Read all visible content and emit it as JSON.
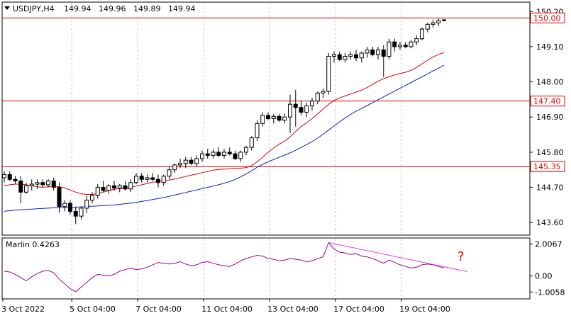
{
  "header": {
    "symbol": "USDJPY,H4",
    "open": "149.94",
    "high": "149.96",
    "low": "149.89",
    "close": "149.94"
  },
  "price_axis": {
    "labels": [
      "150.20",
      "149.10",
      "148.00",
      "146.90",
      "145.80",
      "144.70",
      "143.60"
    ]
  },
  "levels": [
    {
      "value": "150.00",
      "price": 150.0
    },
    {
      "value": "147.40",
      "price": 147.4
    },
    {
      "value": "145.35",
      "price": 145.35
    }
  ],
  "indicator": {
    "name": "Marlin 0.4263",
    "axis_labels": [
      "2.0067",
      "0.00",
      "-1.0058"
    ],
    "annotation": "?"
  },
  "time_axis": {
    "labels": [
      "3 Oct 2022",
      "5 Oct 04:00",
      "7 Oct 04:00",
      "11 Oct 04:00",
      "13 Oct 04:00",
      "17 Oct 04:00",
      "19 Oct 04:00"
    ]
  },
  "colors": {
    "level_line": "#e00000",
    "ma_fast": "#dd0000",
    "ma_slow": "#0022cc",
    "oscillator": "#990099",
    "divergence_line": "#ee33ee"
  },
  "chart_data": {
    "type": "candlestick",
    "ylim": [
      143.25,
      150.45
    ],
    "candles": [
      [
        145.0,
        145.2,
        144.85,
        145.1
      ],
      [
        145.1,
        145.2,
        144.9,
        144.95
      ],
      [
        144.95,
        145.05,
        144.8,
        144.9
      ],
      [
        144.9,
        145.05,
        144.2,
        144.55
      ],
      [
        144.55,
        144.85,
        144.5,
        144.75
      ],
      [
        144.75,
        144.95,
        144.6,
        144.8
      ],
      [
        144.8,
        144.95,
        144.65,
        144.85
      ],
      [
        144.85,
        144.95,
        144.7,
        144.78
      ],
      [
        144.78,
        144.95,
        144.7,
        144.9
      ],
      [
        144.9,
        145.0,
        144.6,
        144.7
      ],
      [
        144.7,
        144.85,
        143.9,
        144.1
      ],
      [
        144.1,
        144.3,
        143.95,
        144.2
      ],
      [
        144.2,
        144.3,
        143.85,
        143.95
      ],
      [
        143.95,
        144.1,
        143.55,
        143.8
      ],
      [
        143.8,
        144.1,
        143.7,
        144.05
      ],
      [
        144.05,
        144.45,
        143.9,
        144.3
      ],
      [
        144.3,
        144.55,
        144.2,
        144.45
      ],
      [
        144.45,
        144.8,
        144.35,
        144.7
      ],
      [
        144.7,
        144.9,
        144.55,
        144.6
      ],
      [
        144.6,
        144.8,
        144.5,
        144.75
      ],
      [
        144.75,
        144.9,
        144.6,
        144.68
      ],
      [
        144.68,
        144.8,
        144.55,
        144.75
      ],
      [
        144.75,
        144.9,
        144.6,
        144.65
      ],
      [
        144.65,
        144.95,
        144.55,
        144.85
      ],
      [
        144.85,
        145.15,
        144.8,
        145.05
      ],
      [
        145.05,
        145.15,
        144.85,
        144.95
      ],
      [
        144.95,
        145.1,
        144.85,
        145.0
      ],
      [
        145.0,
        145.15,
        144.9,
        144.95
      ],
      [
        144.95,
        145.1,
        144.7,
        144.85
      ],
      [
        144.85,
        145.1,
        144.75,
        145.05
      ],
      [
        145.05,
        145.35,
        144.95,
        145.25
      ],
      [
        145.25,
        145.45,
        145.15,
        145.4
      ],
      [
        145.4,
        145.6,
        145.3,
        145.45
      ],
      [
        145.45,
        145.65,
        145.3,
        145.55
      ],
      [
        145.55,
        145.65,
        145.4,
        145.45
      ],
      [
        145.45,
        145.7,
        145.35,
        145.6
      ],
      [
        145.6,
        145.85,
        145.5,
        145.75
      ],
      [
        145.75,
        145.9,
        145.6,
        145.7
      ],
      [
        145.7,
        145.9,
        145.6,
        145.8
      ],
      [
        145.8,
        145.95,
        145.65,
        145.7
      ],
      [
        145.7,
        145.9,
        145.6,
        145.8
      ],
      [
        145.8,
        145.95,
        145.7,
        145.75
      ],
      [
        145.75,
        145.85,
        145.55,
        145.6
      ],
      [
        145.6,
        145.85,
        145.5,
        145.8
      ],
      [
        145.8,
        146.0,
        145.7,
        145.95
      ],
      [
        145.95,
        146.3,
        145.85,
        146.25
      ],
      [
        146.25,
        146.8,
        146.15,
        146.7
      ],
      [
        146.7,
        147.05,
        146.6,
        146.95
      ],
      [
        146.95,
        147.05,
        146.8,
        146.85
      ],
      [
        146.85,
        147.0,
        146.7,
        146.92
      ],
      [
        146.92,
        147.0,
        146.75,
        146.8
      ],
      [
        146.8,
        147.0,
        146.7,
        146.9
      ],
      [
        146.9,
        147.6,
        146.4,
        147.3
      ],
      [
        147.3,
        147.75,
        146.6,
        147.2
      ],
      [
        147.2,
        147.4,
        146.95,
        147.05
      ],
      [
        147.05,
        147.35,
        146.9,
        147.25
      ],
      [
        147.25,
        147.5,
        147.1,
        147.4
      ],
      [
        147.4,
        147.7,
        147.3,
        147.65
      ],
      [
        147.65,
        147.8,
        147.5,
        147.7
      ],
      [
        147.7,
        148.9,
        147.6,
        148.8
      ],
      [
        148.8,
        148.95,
        148.6,
        148.85
      ],
      [
        148.85,
        148.95,
        148.65,
        148.7
      ],
      [
        148.7,
        148.9,
        148.6,
        148.8
      ],
      [
        148.8,
        148.95,
        148.7,
        148.85
      ],
      [
        148.85,
        149.0,
        148.65,
        148.75
      ],
      [
        148.75,
        148.95,
        148.6,
        148.9
      ],
      [
        148.9,
        149.1,
        148.75,
        149.0
      ],
      [
        149.0,
        149.1,
        148.8,
        148.85
      ],
      [
        148.85,
        149.1,
        148.7,
        149.0
      ],
      [
        149.0,
        149.15,
        148.15,
        148.8
      ],
      [
        148.8,
        149.35,
        148.7,
        149.25
      ],
      [
        149.25,
        149.35,
        148.95,
        149.1
      ],
      [
        149.1,
        149.25,
        149.0,
        149.15
      ],
      [
        149.15,
        149.25,
        149.05,
        149.1
      ],
      [
        149.1,
        149.3,
        149.05,
        149.25
      ],
      [
        149.25,
        149.45,
        149.15,
        149.35
      ],
      [
        149.35,
        149.7,
        149.3,
        149.65
      ],
      [
        149.65,
        149.85,
        149.55,
        149.8
      ],
      [
        149.8,
        149.95,
        149.7,
        149.85
      ],
      [
        149.85,
        149.98,
        149.75,
        149.92
      ],
      [
        149.92,
        149.96,
        149.89,
        149.94
      ]
    ],
    "ma_fast": [
      144.75,
      144.78,
      144.8,
      144.8,
      144.78,
      144.75,
      144.72,
      144.7,
      144.72,
      144.74,
      144.72,
      144.68,
      144.62,
      144.55,
      144.5,
      144.48,
      144.48,
      144.5,
      144.55,
      144.6,
      144.64,
      144.66,
      144.68,
      144.7,
      144.74,
      144.78,
      144.82,
      144.86,
      144.88,
      144.9,
      144.93,
      144.96,
      145.0,
      145.04,
      145.08,
      145.12,
      145.16,
      145.2,
      145.24,
      145.26,
      145.27,
      145.28,
      145.29,
      145.3,
      145.32,
      145.38,
      145.5,
      145.65,
      145.8,
      145.93,
      146.05,
      146.15,
      146.28,
      146.45,
      146.6,
      146.72,
      146.85,
      147.0,
      147.15,
      147.3,
      147.42,
      147.5,
      147.56,
      147.62,
      147.68,
      147.74,
      147.82,
      147.92,
      148.02,
      148.1,
      148.16,
      148.22,
      148.26,
      148.3,
      148.36,
      148.45,
      148.56,
      148.68,
      148.78,
      148.86,
      148.92
    ],
    "ma_slow": [
      143.95,
      143.97,
      143.99,
      144.0,
      144.01,
      144.02,
      144.03,
      144.04,
      144.05,
      144.06,
      144.06,
      144.06,
      144.07,
      144.08,
      144.09,
      144.1,
      144.11,
      144.12,
      144.13,
      144.14,
      144.15,
      144.17,
      144.19,
      144.21,
      144.23,
      144.26,
      144.29,
      144.32,
      144.35,
      144.38,
      144.42,
      144.46,
      144.5,
      144.54,
      144.58,
      144.62,
      144.66,
      144.7,
      144.74,
      144.78,
      144.83,
      144.88,
      144.95,
      145.03,
      145.12,
      145.22,
      145.33,
      145.42,
      145.5,
      145.57,
      145.64,
      145.71,
      145.78,
      145.86,
      145.95,
      146.04,
      146.13,
      146.24,
      146.36,
      146.49,
      146.62,
      146.75,
      146.87,
      146.98,
      147.08,
      147.17,
      147.26,
      147.35,
      147.44,
      147.53,
      147.62,
      147.71,
      147.8,
      147.89,
      147.98,
      148.07,
      148.16,
      148.25,
      148.34,
      148.43,
      148.52
    ],
    "oscillator": {
      "ylim": [
        -1.35,
        2.3
      ],
      "values": [
        0.3,
        0.25,
        0.1,
        -0.1,
        -0.3,
        -0.05,
        0.15,
        0.3,
        0.35,
        0.2,
        -0.2,
        -0.5,
        -0.8,
        -1.0,
        -0.7,
        -0.4,
        -0.1,
        0.1,
        0.05,
        0.0,
        0.1,
        0.3,
        0.4,
        0.5,
        0.4,
        0.45,
        0.55,
        0.7,
        0.85,
        0.8,
        0.75,
        0.8,
        0.9,
        0.75,
        0.65,
        0.7,
        0.85,
        0.9,
        0.8,
        0.7,
        0.65,
        0.6,
        0.75,
        0.95,
        1.1,
        1.2,
        1.3,
        1.25,
        1.1,
        1.05,
        0.95,
        1.0,
        1.1,
        1.05,
        1.0,
        0.9,
        0.95,
        1.1,
        1.2,
        2.1,
        1.7,
        1.5,
        1.45,
        1.35,
        1.4,
        1.25,
        1.2,
        1.1,
        0.95,
        0.8,
        1.0,
        0.85,
        0.7,
        0.6,
        0.5,
        0.55,
        0.7,
        0.75,
        0.7,
        0.6,
        0.5
      ],
      "divergence": {
        "from": [
          59,
          2.1
        ],
        "to": [
          81,
          0.45
        ]
      }
    }
  }
}
